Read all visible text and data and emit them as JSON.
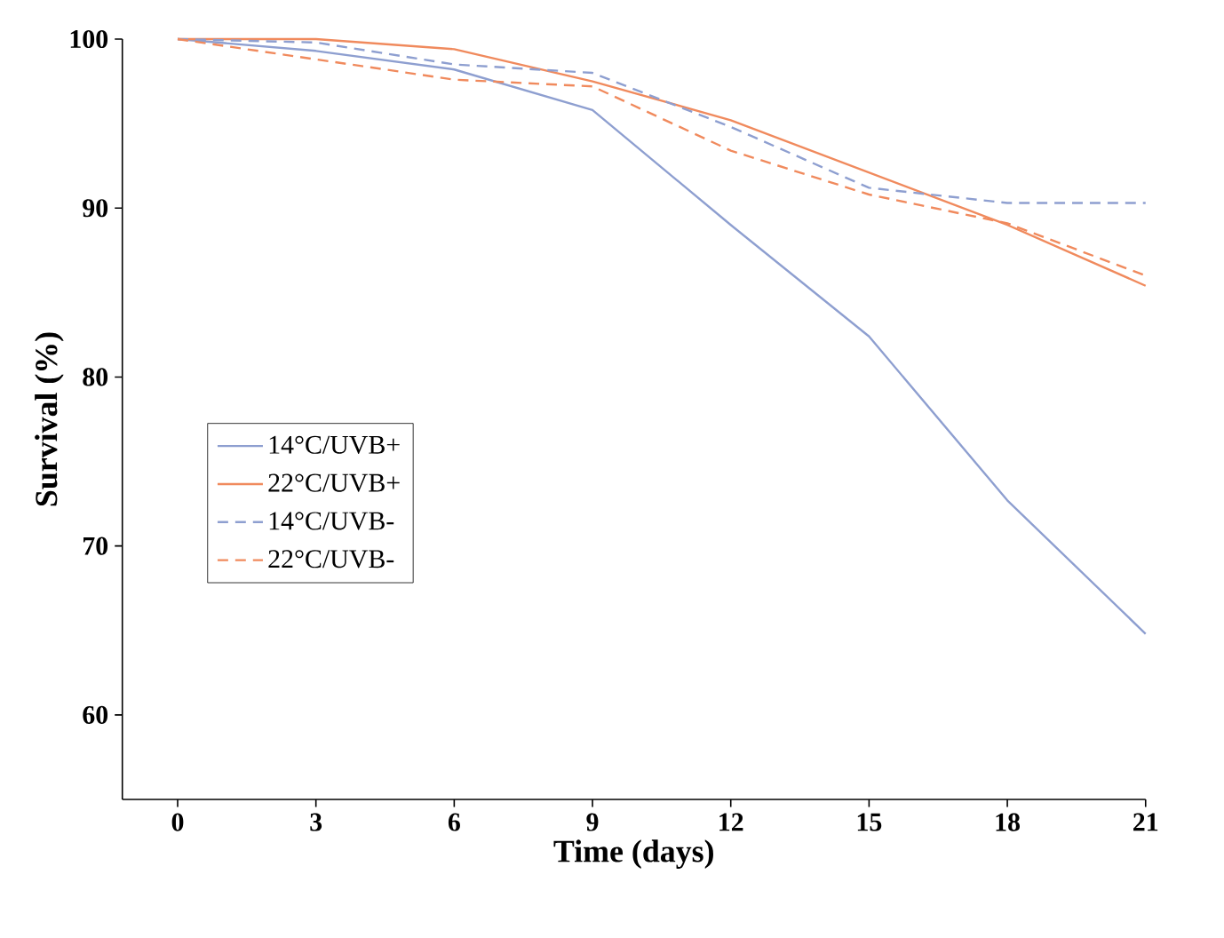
{
  "chart_data": {
    "type": "line",
    "xlabel": "Time (days)",
    "ylabel": "Survival (%)",
    "x": [
      0,
      3,
      6,
      9,
      12,
      15,
      18,
      21
    ],
    "xlim": [
      -1.2,
      21
    ],
    "xticks": [
      0,
      3,
      6,
      9,
      12,
      15,
      18,
      21
    ],
    "ylim": [
      55,
      100
    ],
    "yticks": [
      60,
      70,
      80,
      90,
      100
    ],
    "legend": "left",
    "marker": "none",
    "series": [
      {
        "name": "14°C/UVB+",
        "color": "#8e9fd0",
        "line_style": "solid",
        "values": [
          100,
          99.3,
          98.2,
          95.8,
          89.0,
          82.4,
          72.7,
          64.8
        ]
      },
      {
        "name": "22°C/UVB+",
        "color": "#f08a5d",
        "line_style": "solid",
        "values": [
          100,
          100,
          99.4,
          97.5,
          95.2,
          92.1,
          89.0,
          85.4
        ]
      },
      {
        "name": "14°C/UVB-",
        "color": "#8e9fd0",
        "line_style": "dashed",
        "values": [
          100,
          99.8,
          98.5,
          98.0,
          94.8,
          91.2,
          90.3,
          90.3
        ]
      },
      {
        "name": "22°C/UVB-",
        "color": "#f08a5d",
        "line_style": "dashed",
        "values": [
          100,
          98.8,
          97.6,
          97.2,
          93.4,
          90.8,
          89.1,
          86.0
        ]
      }
    ]
  }
}
